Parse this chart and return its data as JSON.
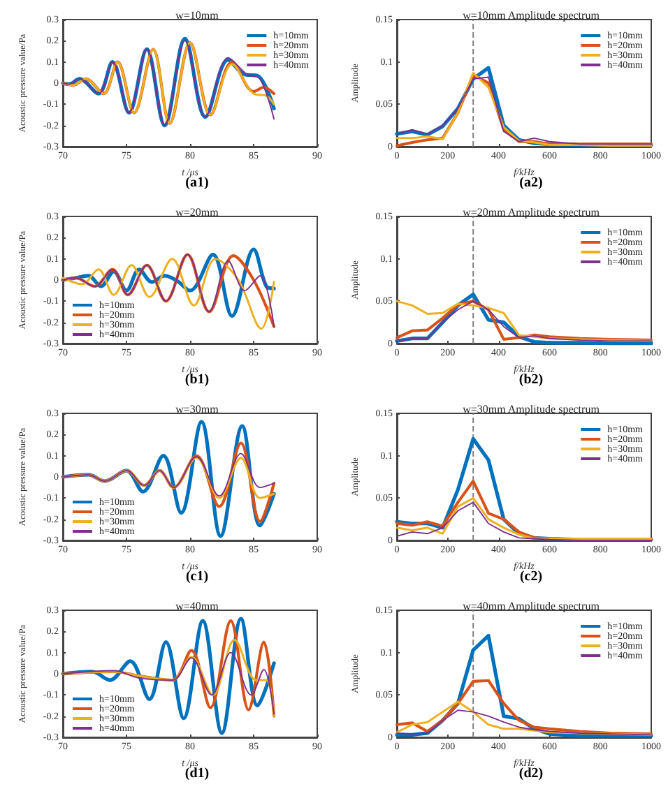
{
  "chart_data": [
    {
      "type": "line",
      "title": "w=10mm",
      "xlabel": "t /μs",
      "ylabel": "Acoustic pressure value/Pa",
      "annotations": [
        "(a1)"
      ],
      "xlim": [
        70,
        90
      ],
      "xticks": [
        70,
        75,
        80,
        85,
        90
      ],
      "ylim": [
        -0.3,
        0.3
      ],
      "yticks": [
        -0.3,
        -0.2,
        -0.1,
        0,
        0.1,
        0.2,
        0.3
      ],
      "legend": "top right",
      "series": [
        {
          "name": "h=10mm",
          "color": "#0072bd",
          "x": [
            70,
            70.5,
            71.3,
            72.8,
            73.9,
            75.2,
            76.6,
            78.0,
            79.6,
            81.2,
            83.0,
            84.3,
            85.3,
            86.6
          ],
          "values": [
            0,
            -0.005,
            0.02,
            -0.05,
            0.1,
            -0.14,
            0.16,
            -0.2,
            0.21,
            -0.16,
            0.11,
            0.04,
            0.035,
            -0.12
          ]
        },
        {
          "name": "h=20mm",
          "color": "#d95319",
          "x": [
            70,
            70.8,
            71.8,
            73.2,
            74.3,
            75.6,
            77.1,
            78.4,
            80.0,
            81.6,
            83.3,
            85.0,
            85.8,
            86.6
          ],
          "values": [
            0,
            -0.01,
            0.02,
            -0.05,
            0.1,
            -0.14,
            0.16,
            -0.19,
            0.19,
            -0.15,
            0.1,
            -0.04,
            -0.02,
            -0.05
          ]
        },
        {
          "name": "h=30mm",
          "color": "#edb120",
          "x": [
            70,
            70.8,
            71.8,
            73.2,
            74.3,
            75.6,
            77.1,
            78.4,
            80.0,
            81.6,
            83.3,
            85.0,
            86.0,
            86.6
          ],
          "values": [
            0,
            -0.01,
            0.02,
            -0.05,
            0.1,
            -0.14,
            0.16,
            -0.19,
            0.19,
            -0.15,
            0.09,
            -0.05,
            -0.06,
            -0.1
          ]
        },
        {
          "name": "h=40mm",
          "color": "#7e2f8e",
          "x": [
            70,
            70.5,
            71.3,
            72.8,
            73.9,
            75.2,
            76.6,
            78.0,
            79.6,
            81.2,
            83.0,
            84.5,
            85.5,
            86.6
          ],
          "values": [
            0,
            -0.005,
            0.02,
            -0.05,
            0.1,
            -0.14,
            0.16,
            -0.2,
            0.2,
            -0.16,
            0.12,
            0.04,
            0.02,
            -0.17
          ]
        }
      ]
    },
    {
      "type": "line",
      "title": "w=10mm Amplitude spectrum",
      "xlabel": "f/kHz",
      "ylabel": "Amplitude",
      "annotations": [
        "(a2)"
      ],
      "xlim": [
        0,
        1000
      ],
      "xticks": [
        0,
        200,
        400,
        600,
        800,
        1000
      ],
      "ylim": [
        0,
        0.15
      ],
      "yticks": [
        0,
        0.05,
        0.1,
        0.15
      ],
      "legend": "top right",
      "ref_lines": [
        {
          "axis": "x",
          "value": 300,
          "color": "#808080",
          "line_style": "dashed"
        }
      ],
      "x": [
        0,
        60,
        120,
        180,
        240,
        300,
        360,
        420,
        480,
        540,
        600,
        720,
        840,
        1000
      ],
      "series": [
        {
          "name": "h=10mm",
          "color": "#0072bd",
          "values": [
            0.015,
            0.018,
            0.014,
            0.024,
            0.045,
            0.08,
            0.093,
            0.025,
            0.008,
            0.004,
            0.003,
            0.002,
            0.002,
            0.002
          ]
        },
        {
          "name": "h=20mm",
          "color": "#d95319",
          "values": [
            0.001,
            0.005,
            0.008,
            0.01,
            0.04,
            0.085,
            0.075,
            0.02,
            0.006,
            0.006,
            0.003,
            0.003,
            0.003,
            0.003
          ]
        },
        {
          "name": "h=30mm",
          "color": "#edb120",
          "values": [
            0.01,
            0.01,
            0.012,
            0.009,
            0.04,
            0.087,
            0.07,
            0.023,
            0.007,
            0.005,
            0.002,
            0.002,
            0.001,
            0.001
          ]
        },
        {
          "name": "h=40mm",
          "color": "#7e2f8e",
          "values": [
            0.015,
            0.02,
            0.015,
            0.025,
            0.045,
            0.08,
            0.082,
            0.018,
            0.006,
            0.01,
            0.006,
            0.003,
            0.003,
            0.003
          ]
        }
      ]
    },
    {
      "type": "line",
      "title": "w=20mm",
      "xlabel": "t /μs",
      "ylabel": "Acoustic pressure value/Pa",
      "annotations": [
        "(b1)"
      ],
      "xlim": [
        70,
        90
      ],
      "xticks": [
        70,
        75,
        80,
        85,
        90
      ],
      "ylim": [
        -0.3,
        0.3
      ],
      "yticks": [
        -0.3,
        -0.2,
        -0.1,
        0,
        0.1,
        0.2,
        0.3
      ],
      "legend": "bottom left",
      "series": [
        {
          "name": "h=10mm",
          "color": "#0072bd",
          "x": [
            70,
            71,
            72,
            73,
            74,
            75,
            76,
            77,
            78,
            79,
            80,
            81.8,
            83.3,
            85,
            86,
            86.6
          ],
          "values": [
            0,
            0.01,
            0.02,
            -0.03,
            0.04,
            -0.05,
            0.05,
            -0.01,
            0.02,
            -0.005,
            -0.05,
            0.12,
            -0.17,
            0.145,
            -0.03,
            -0.04
          ]
        },
        {
          "name": "h=20mm",
          "color": "#d95319",
          "x": [
            70,
            71,
            72.5,
            73.9,
            75.1,
            76.6,
            78.1,
            79.8,
            81.5,
            83.4,
            85,
            86.6
          ],
          "values": [
            0,
            0.01,
            -0.03,
            0.05,
            -0.07,
            0.07,
            -0.1,
            0.12,
            -0.15,
            0.115,
            0,
            -0.22
          ]
        },
        {
          "name": "h=30mm",
          "color": "#edb120",
          "x": [
            70,
            71.5,
            72.8,
            74,
            75.4,
            76.8,
            78.6,
            80.3,
            82,
            83.8,
            85.6,
            86.6
          ],
          "values": [
            0.01,
            -0.02,
            0.05,
            -0.07,
            0.07,
            -0.08,
            0.1,
            -0.12,
            0.1,
            0,
            -0.23,
            -0.01
          ]
        },
        {
          "name": "h=40mm",
          "color": "#7e2f8e",
          "x": [
            70,
            71,
            72.5,
            73.9,
            75.1,
            76.6,
            78.1,
            79.8,
            81.5,
            83,
            84.3,
            85.5,
            86.6
          ],
          "values": [
            0,
            0.01,
            -0.03,
            0.05,
            -0.07,
            0.07,
            -0.1,
            0.12,
            -0.15,
            0.09,
            -0.05,
            0.02,
            -0.22
          ]
        }
      ]
    },
    {
      "type": "line",
      "title": "w=20mm Amplitude spectrum",
      "xlabel": "f/kHz",
      "ylabel": "Amplitude",
      "annotations": [
        "(b2)"
      ],
      "xlim": [
        0,
        1000
      ],
      "xticks": [
        0,
        200,
        400,
        600,
        800,
        1000
      ],
      "ylim": [
        0,
        0.15
      ],
      "yticks": [
        0,
        0.05,
        0.1,
        0.15
      ],
      "legend": "top right",
      "ref_lines": [
        {
          "axis": "x",
          "value": 300,
          "color": "#808080",
          "line_style": "dashed"
        }
      ],
      "x": [
        0,
        60,
        120,
        180,
        240,
        300,
        360,
        420,
        480,
        540,
        600,
        720,
        840,
        1000
      ],
      "series": [
        {
          "name": "h=10mm",
          "color": "#0072bd",
          "values": [
            0.003,
            0.006,
            0.006,
            0.025,
            0.045,
            0.058,
            0.028,
            0.025,
            0.008,
            0.002,
            0.001,
            0.001,
            0,
            0
          ]
        },
        {
          "name": "h=20mm",
          "color": "#d95319",
          "values": [
            0.007,
            0.015,
            0.016,
            0.03,
            0.046,
            0.05,
            0.04,
            0.005,
            0.007,
            0.01,
            0.008,
            0.006,
            0.005,
            0.004
          ]
        },
        {
          "name": "h=30mm",
          "color": "#edb120",
          "values": [
            0.05,
            0.045,
            0.035,
            0.036,
            0.047,
            0.045,
            0.042,
            0.036,
            0.01,
            0.008,
            0.006,
            0.005,
            0.004,
            0.003
          ]
        },
        {
          "name": "h=40mm",
          "color": "#7e2f8e",
          "values": [
            0.002,
            0.006,
            0.006,
            0.025,
            0.04,
            0.05,
            0.04,
            0.02,
            0.007,
            0.009,
            0.006,
            0.004,
            0.003,
            0.003
          ]
        }
      ]
    },
    {
      "type": "line",
      "title": "w=30mm",
      "xlabel": "t /μs",
      "ylabel": "Acoustic pressure value/Pa",
      "annotations": [
        "(c1)"
      ],
      "xlim": [
        70,
        90
      ],
      "xticks": [
        70,
        75,
        80,
        85,
        90
      ],
      "ylim": [
        -0.3,
        0.3
      ],
      "yticks": [
        -0.3,
        -0.2,
        -0.1,
        0,
        0.1,
        0.2,
        0.3
      ],
      "legend": "bottom left",
      "series": [
        {
          "name": "h=10mm",
          "color": "#0072bd",
          "x": [
            70,
            72,
            73.3,
            75,
            76.3,
            77.9,
            79.3,
            80.9,
            82.4,
            84.1,
            85.5,
            86.6
          ],
          "values": [
            0,
            0.01,
            -0.02,
            0.03,
            -0.07,
            0.1,
            -0.17,
            0.26,
            -0.28,
            0.24,
            -0.23,
            -0.08
          ]
        },
        {
          "name": "h=20mm",
          "color": "#d95319",
          "x": [
            70,
            72,
            73.3,
            75,
            76.4,
            77.6,
            78.7,
            80.5,
            82.3,
            84,
            85.5,
            86.6
          ],
          "values": [
            0,
            0.01,
            -0.02,
            0.03,
            -0.04,
            0.03,
            -0.05,
            0.1,
            -0.14,
            0.16,
            -0.21,
            -0.03
          ]
        },
        {
          "name": "h=30mm",
          "color": "#edb120",
          "x": [
            70,
            72,
            73.3,
            75,
            76.4,
            77.6,
            78.7,
            80.5,
            82.3,
            84,
            85.5,
            86.6
          ],
          "values": [
            0,
            0.01,
            -0.02,
            0.03,
            -0.04,
            0.03,
            -0.05,
            0.09,
            -0.1,
            0.09,
            -0.1,
            -0.08
          ]
        },
        {
          "name": "h=40mm",
          "color": "#7e2f8e",
          "x": [
            70,
            72,
            73.3,
            75,
            76.4,
            77.6,
            78.7,
            80.5,
            82.3,
            84,
            85.5,
            86.6
          ],
          "values": [
            0,
            0.01,
            -0.02,
            0.03,
            -0.04,
            0.03,
            -0.05,
            0.095,
            -0.09,
            0.11,
            -0.05,
            -0.03
          ]
        }
      ]
    },
    {
      "type": "line",
      "title": "w=30mm Amplitude spectrum",
      "xlabel": "f/kHz",
      "ylabel": "Amplitude",
      "annotations": [
        "(c2)"
      ],
      "xlim": [
        0,
        1000
      ],
      "xticks": [
        0,
        200,
        400,
        600,
        800,
        1000
      ],
      "ylim": [
        0,
        0.15
      ],
      "yticks": [
        0,
        0.05,
        0.1,
        0.15
      ],
      "legend": "top right",
      "ref_lines": [
        {
          "axis": "x",
          "value": 300,
          "color": "#808080",
          "line_style": "dashed"
        }
      ],
      "x": [
        0,
        60,
        120,
        180,
        240,
        300,
        360,
        420,
        480,
        540,
        600,
        720,
        840,
        1000
      ],
      "series": [
        {
          "name": "h=10mm",
          "color": "#0072bd",
          "values": [
            0.022,
            0.02,
            0.02,
            0.015,
            0.06,
            0.12,
            0.095,
            0.025,
            0.008,
            0.003,
            0.002,
            0.001,
            0.001,
            0.001
          ]
        },
        {
          "name": "h=20mm",
          "color": "#d95319",
          "values": [
            0.02,
            0.018,
            0.022,
            0.017,
            0.045,
            0.07,
            0.032,
            0.025,
            0.01,
            0.003,
            0.002,
            0.001,
            0.001,
            0.001
          ]
        },
        {
          "name": "h=30mm",
          "color": "#edb120",
          "values": [
            0.015,
            0.012,
            0.015,
            0.008,
            0.04,
            0.05,
            0.025,
            0.015,
            0.007,
            0.002,
            0.002,
            0.002,
            0.002,
            0.002
          ]
        },
        {
          "name": "h=40mm",
          "color": "#7e2f8e",
          "values": [
            0.005,
            0.01,
            0.008,
            0.015,
            0.035,
            0.045,
            0.02,
            0.01,
            0.003,
            0.002,
            0.001,
            0,
            0,
            0
          ]
        }
      ]
    },
    {
      "type": "line",
      "title": "w=40mm",
      "xlabel": "t /μs",
      "ylabel": "Acoustic pressure value/Pa",
      "annotations": [
        "(d1)"
      ],
      "xlim": [
        70,
        90
      ],
      "xticks": [
        70,
        75,
        80,
        85,
        90
      ],
      "ylim": [
        -0.3,
        0.3
      ],
      "yticks": [
        -0.3,
        -0.2,
        -0.1,
        0,
        0.1,
        0.2,
        0.3
      ],
      "legend": "bottom left",
      "series": [
        {
          "name": "h=10mm",
          "color": "#0072bd",
          "x": [
            70,
            72.3,
            73.7,
            75.3,
            76.8,
            78.1,
            79.5,
            81,
            82.5,
            84,
            85.3,
            86.6
          ],
          "values": [
            0,
            0.01,
            -0.03,
            0.06,
            -0.12,
            0.15,
            -0.21,
            0.25,
            -0.28,
            0.26,
            -0.15,
            0.05
          ]
        },
        {
          "name": "h=20mm",
          "color": "#d95319",
          "x": [
            70,
            74,
            76,
            78.6,
            80.1,
            81.6,
            83.2,
            84.6,
            85.8,
            86.6
          ],
          "values": [
            0,
            0.01,
            -0.01,
            -0.03,
            0.11,
            -0.16,
            0.25,
            -0.17,
            0.15,
            -0.2
          ]
        },
        {
          "name": "h=30mm",
          "color": "#edb120",
          "x": [
            70,
            74,
            76,
            78.6,
            80.1,
            81.8,
            83.5,
            85.2,
            86,
            86.6
          ],
          "values": [
            0,
            0.01,
            -0.01,
            -0.03,
            0.08,
            -0.1,
            0.16,
            -0.03,
            -0.03,
            -0.2
          ]
        },
        {
          "name": "h=40mm",
          "color": "#7e2f8e",
          "x": [
            70,
            74,
            76,
            78.6,
            80.1,
            81.7,
            83.2,
            84.8,
            85.8,
            86.6
          ],
          "values": [
            0,
            0.015,
            -0.02,
            -0.03,
            0.075,
            -0.1,
            0.1,
            -0.1,
            0.02,
            -0.19
          ]
        }
      ]
    },
    {
      "type": "line",
      "title": "w=40mm Amplitude spectrum",
      "xlabel": "f/kHz",
      "ylabel": "Amplitude",
      "annotations": [
        "(d2)"
      ],
      "xlim": [
        0,
        1000
      ],
      "xticks": [
        0,
        200,
        400,
        600,
        800,
        1000
      ],
      "ylim": [
        0,
        0.15
      ],
      "yticks": [
        0,
        0.05,
        0.1,
        0.15
      ],
      "legend": "top right",
      "ref_lines": [
        {
          "axis": "x",
          "value": 300,
          "color": "#808080",
          "line_style": "dashed"
        }
      ],
      "x": [
        0,
        60,
        120,
        180,
        240,
        300,
        360,
        420,
        480,
        540,
        600,
        720,
        840,
        1000
      ],
      "series": [
        {
          "name": "h=10mm",
          "color": "#0072bd",
          "values": [
            0.003,
            0.003,
            0.005,
            0.02,
            0.04,
            0.103,
            0.12,
            0.025,
            0.022,
            0.01,
            0.004,
            0.002,
            0.002,
            0.002
          ]
        },
        {
          "name": "h=20mm",
          "color": "#d95319",
          "values": [
            0.015,
            0.017,
            0.007,
            0.02,
            0.04,
            0.066,
            0.067,
            0.04,
            0.02,
            0.012,
            0.01,
            0.007,
            0.005,
            0.004
          ]
        },
        {
          "name": "h=30mm",
          "color": "#edb120",
          "values": [
            0.006,
            0.015,
            0.018,
            0.03,
            0.042,
            0.03,
            0.015,
            0.01,
            0.01,
            0.008,
            0.006,
            0.005,
            0.004,
            0.003
          ]
        },
        {
          "name": "h=40mm",
          "color": "#7e2f8e",
          "values": [
            0.005,
            0.004,
            0.005,
            0.02,
            0.032,
            0.03,
            0.025,
            0.018,
            0.012,
            0.009,
            0.007,
            0.005,
            0.004,
            0.003
          ]
        }
      ]
    }
  ]
}
